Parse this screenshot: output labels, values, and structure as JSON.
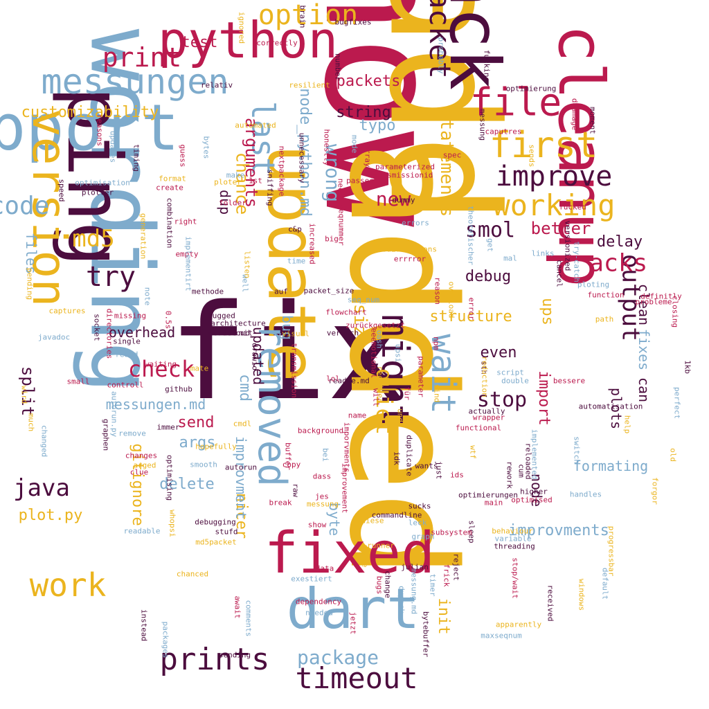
{
  "palette": {
    "gold": "#EBB41E",
    "crimson": "#BB1A4E",
    "plum": "#4C0D3E",
    "steel": "#7EABCC"
  },
  "words": [
    {
      "text": "now",
      "color": "crimson"
    },
    {
      "text": "add",
      "color": "gold"
    },
    {
      "text": "fix",
      "color": "plum"
    },
    {
      "text": "wording",
      "color": "steel"
    },
    {
      "text": "update",
      "color": "gold"
    },
    {
      "text": "added",
      "color": "gold"
    },
    {
      "text": "ping",
      "color": "plum"
    },
    {
      "text": "fixed",
      "color": "crimson"
    },
    {
      "text": "support",
      "color": "steel"
    },
    {
      "text": "ack",
      "color": "plum"
    },
    {
      "text": "cleanup",
      "color": "crimson"
    },
    {
      "text": "python",
      "color": "crimson"
    },
    {
      "text": "version",
      "color": "gold"
    },
    {
      "text": "dart",
      "color": "steel"
    },
    {
      "text": "messungen",
      "color": "steel"
    },
    {
      "text": "packet",
      "color": "plum"
    },
    {
      "text": "last",
      "color": "steel"
    },
    {
      "text": "file",
      "color": "crimson"
    },
    {
      "text": "removed",
      "color": "steel"
    },
    {
      "text": "might",
      "color": "plum"
    },
    {
      "text": "first",
      "color": "gold"
    },
    {
      "text": "improve",
      "color": "plum"
    },
    {
      "text": "wait",
      "color": "steel"
    },
    {
      "text": "working",
      "color": "gold"
    },
    {
      "text": "prints",
      "color": "plum"
    },
    {
      "text": "timeout",
      "color": "plum"
    },
    {
      "text": "work",
      "color": "gold"
    },
    {
      "text": "option",
      "color": "gold"
    },
    {
      "text": "print",
      "color": "crimson"
    },
    {
      "text": "output",
      "color": "plum"
    },
    {
      "text": "acks",
      "color": "crimson"
    },
    {
      "text": "quiet",
      "color": "gold"
    },
    {
      "text": "code",
      "color": "steel"
    },
    {
      "text": "java",
      "color": "plum"
    },
    {
      "text": "md5",
      "color": "gold"
    },
    {
      "text": "try",
      "color": "plum"
    },
    {
      "text": "check",
      "color": "crimson"
    },
    {
      "text": "statements",
      "color": "gold"
    },
    {
      "text": "wrong",
      "color": "steel"
    },
    {
      "text": "node_python.md",
      "color": "steel"
    },
    {
      "text": "package",
      "color": "steel"
    },
    {
      "text": "new",
      "color": "crimson"
    },
    {
      "text": "smol",
      "color": "plum"
    },
    {
      "text": "stop",
      "color": "plum"
    },
    {
      "text": "debug",
      "color": "plum"
    },
    {
      "text": "size",
      "color": "gold"
    },
    {
      "text": "chance",
      "color": "gold"
    },
    {
      "text": "arguments",
      "color": "crimson"
    },
    {
      "text": "customizability",
      "color": "gold"
    },
    {
      "text": "string",
      "color": "plum"
    },
    {
      "text": "typo",
      "color": "steel"
    },
    {
      "text": "test",
      "color": "crimson"
    },
    {
      "text": "packets",
      "color": "crimson"
    },
    {
      "text": "better",
      "color": "crimson"
    },
    {
      "text": "delay",
      "color": "plum"
    },
    {
      "text": "structure",
      "color": "gold"
    },
    {
      "text": "ups",
      "color": "gold"
    },
    {
      "text": "even",
      "color": "plum"
    },
    {
      "text": "messungen.md",
      "color": "steel"
    },
    {
      "text": "overhead",
      "color": "plum"
    },
    {
      "text": "send",
      "color": "crimson"
    },
    {
      "text": "args",
      "color": "steel"
    },
    {
      "text": "delete",
      "color": "steel"
    },
    {
      "text": "split",
      "color": "plum"
    },
    {
      "text": "files",
      "color": "steel"
    },
    {
      "text": "cmd",
      "color": "steel"
    },
    {
      "text": "updated",
      "color": "plum"
    },
    {
      "text": "init",
      "color": "gold"
    },
    {
      "text": "improvments",
      "color": "steel"
    },
    {
      "text": "formating",
      "color": "steel"
    },
    {
      "text": "plot.py",
      "color": "gold"
    },
    {
      "text": "gitignore",
      "color": "gold"
    },
    {
      "text": "nicer",
      "color": "gold"
    },
    {
      "text": "improvment",
      "color": "steel"
    },
    {
      "text": "byte",
      "color": "steel"
    },
    {
      "text": "clean",
      "color": "plum"
    },
    {
      "text": "fixes",
      "color": "steel"
    },
    {
      "text": "can",
      "color": "plum"
    },
    {
      "text": "plots",
      "color": "plum"
    },
    {
      "text": "node",
      "color": "plum"
    },
    {
      "text": "import",
      "color": "crimson"
    },
    {
      "text": "dup",
      "color": "plum"
    },
    {
      "text": "bug",
      "color": "steel"
    }
  ],
  "small_words": [
    "brain",
    "bugfixes",
    "correctly",
    "ignored",
    "relativ",
    "number",
    "resilient",
    "probably",
    "fucking",
    "messung",
    "optimierung",
    "daamage",
    "moment",
    "caputres",
    "reasons",
    "updates",
    "timing",
    "guess",
    "bytes",
    "honestly",
    "mode",
    "array",
    "spec",
    "sends",
    "unnecessary",
    "nextpackage",
    "parameterized",
    "transmissionid",
    "automated",
    "speed",
    "plotter",
    "optimisation",
    "create",
    "format",
    "ploter",
    "make",
    "1st",
    "need",
    "passes",
    "sniffing",
    "generation",
    "combination",
    "right",
    "folder",
    "fucked",
    "c&p",
    "increased",
    "big",
    "dummy",
    "errors",
    "seqnummer",
    "modifications",
    "errrror",
    "theoretischer",
    "get",
    "versionized",
    "links",
    "try-catch",
    "empty",
    "implementirt",
    "time",
    "cancel",
    "ploting",
    "function",
    "pending",
    "captures",
    "socket",
    "directories",
    "note",
    "methode",
    "auf",
    "packet_size",
    "seq_num",
    "flowchart",
    "reason",
    "overload",
    "definitly",
    "probleme",
    "closing",
    "missing",
    "bugged",
    "zurückgesetzt",
    "architecture",
    "verusch",
    "error",
    "path",
    "javadoc",
    "single",
    "readd",
    "wordcloud",
    "mit",
    "visual",
    "drawio",
    "eeemotional",
    "transmission",
    "readme.md",
    "lol",
    "für",
    "parameter",
    "sth",
    "reduction",
    "1kb",
    "perfect",
    "waiting",
    "mate",
    "double",
    "script",
    "bessere",
    "small",
    "controll",
    "github",
    "receiver",
    "und",
    "automatisation",
    "graphen",
    "autorun.py",
    "remove",
    "immer",
    "cmdl",
    "name",
    "wtf",
    "functional",
    "wrapper",
    "help",
    "actually",
    "much",
    "wird",
    "changes",
    "arged",
    "hopefully",
    "background",
    "buffer",
    "imporvments",
    "duplicate",
    "cum",
    "reloaded",
    "implemented",
    "switch",
    "old",
    "smooth",
    "autorun",
    "copy",
    "raw",
    "bei",
    "just",
    "ids",
    "wants",
    "rework",
    "clue",
    "optimising",
    "dass",
    "improvement",
    "optimierungen",
    "main",
    "higher",
    "optimised",
    "handles",
    "forgor",
    "messung",
    "jes",
    "sucks",
    "commandline",
    "diese",
    "leck",
    "break",
    "show",
    "debugging",
    "stufd",
    "md5packet",
    "behaviour",
    "variable",
    "threading",
    "readable",
    "graph",
    "runner",
    "sleep",
    "subsystem",
    "place",
    "progressbar",
    "julian",
    "data",
    "exestiert",
    "reject",
    "stop/wait",
    "received",
    "default",
    "chanced",
    "dependency",
    "bugs",
    "change",
    "frick",
    "messung.md",
    "dupack",
    "timer",
    "windows",
    "jetzt",
    "apparently",
    "bytebuffer",
    "await",
    "comments",
    "packages",
    "instead",
    "needed",
    "maxseqnum",
    "sending",
    "changed",
    "whopsi",
    "0.5s",
    "npm",
    "upsi",
    "well",
    "listen",
    "sind",
    "mal",
    "oash",
    "idk",
    "will",
    "overhall"
  ]
}
